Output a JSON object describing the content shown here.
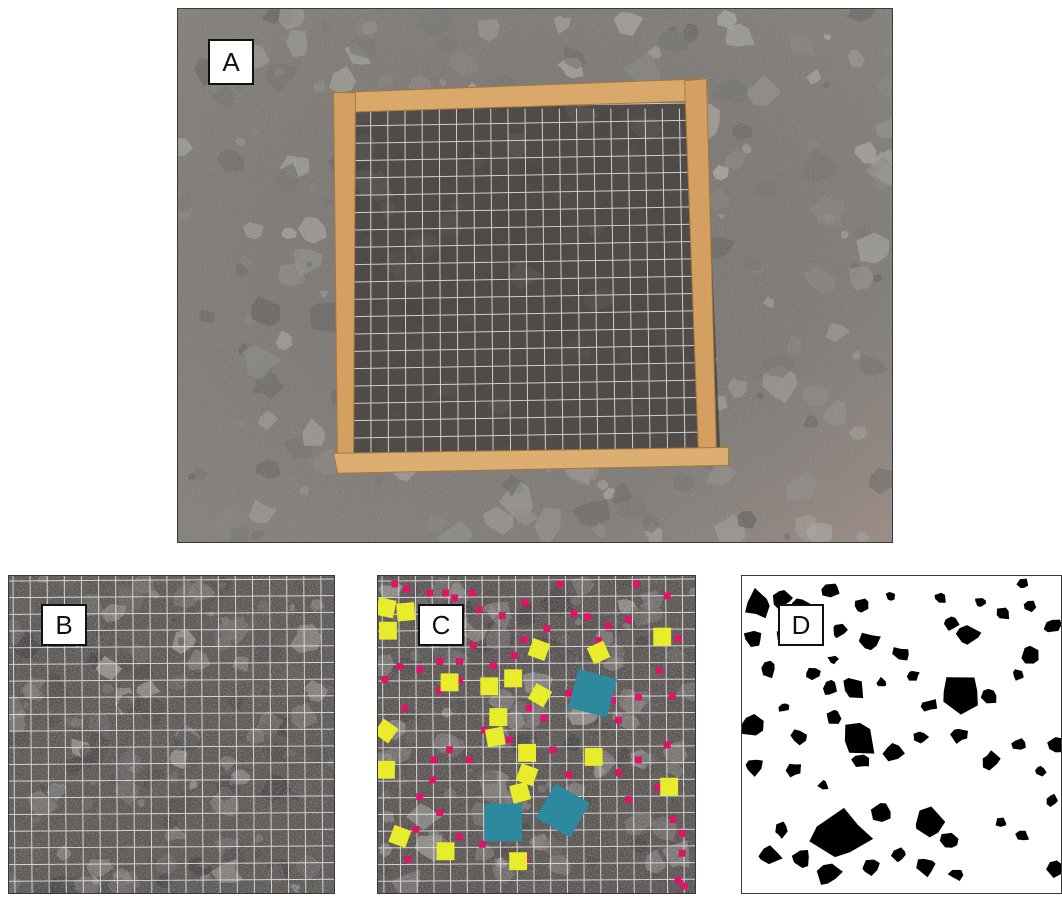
{
  "panels": {
    "a": {
      "label": "A"
    },
    "b": {
      "label": "B"
    },
    "c": {
      "label": "C"
    },
    "d": {
      "label": "D"
    }
  },
  "colors": {
    "frame_wood": "#d9a86a",
    "grid_wire": "#e6e6e6",
    "marker_small": "#e0136b",
    "marker_medium": "#e8ec2a",
    "marker_large": "#2d8a9e",
    "mask_rock": "#000000"
  }
}
